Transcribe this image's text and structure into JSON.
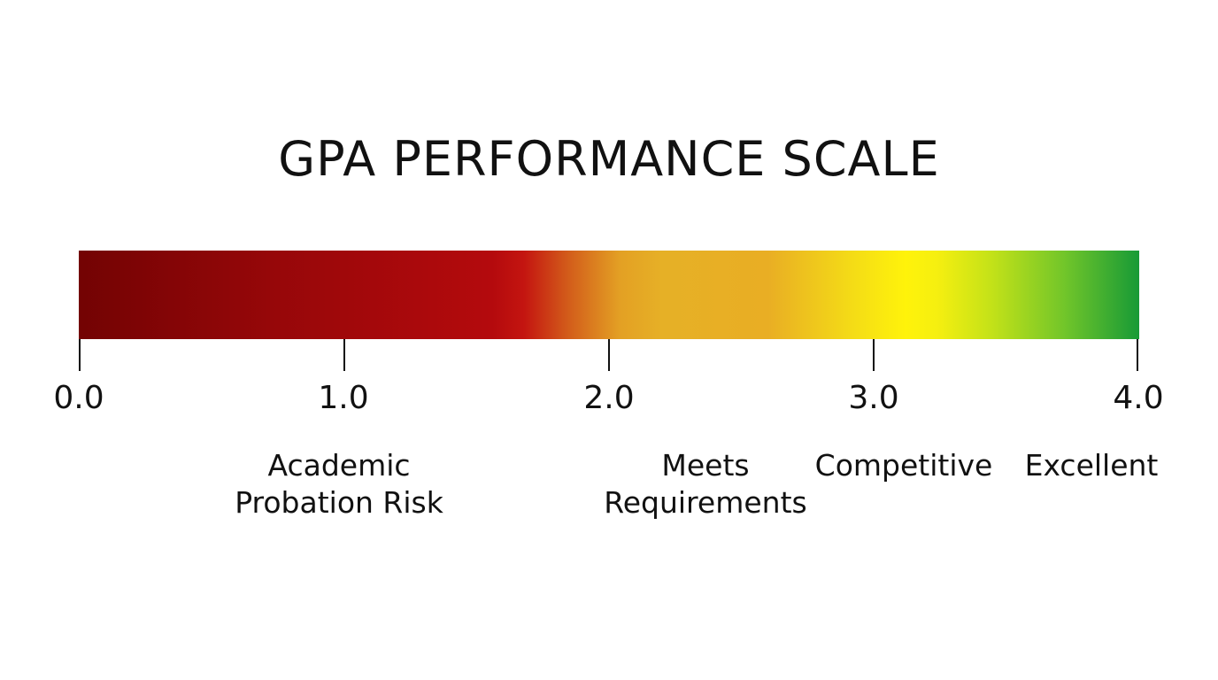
{
  "title": "GPA PERFORMANCE SCALE",
  "scale": {
    "min": 0.0,
    "max": 4.0,
    "gradient": [
      "#730303",
      "#b40a0d",
      "#e6b026",
      "#fff30a",
      "#179a36"
    ],
    "ticks": [
      "0.0",
      "1.0",
      "2.0",
      "3.0",
      "4.0"
    ]
  },
  "categories": [
    {
      "lines": [
        "Academic",
        "Probation Risk"
      ]
    },
    {
      "lines": [
        "Meets",
        "Requirements"
      ]
    },
    {
      "lines": [
        "Competitive"
      ]
    },
    {
      "lines": [
        "Excellent"
      ]
    }
  ]
}
